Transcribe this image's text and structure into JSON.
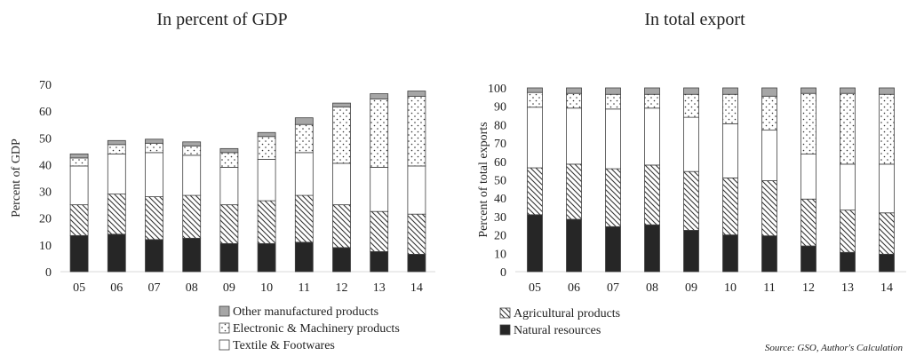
{
  "chart_data": [
    {
      "type": "bar",
      "stacked": true,
      "title": "In percent of GDP",
      "ylabel": "Percent of GDP",
      "xlabel": "",
      "ylim": [
        0,
        70
      ],
      "yticks": [
        0,
        10,
        20,
        30,
        40,
        50,
        60,
        70
      ],
      "grid": false,
      "categories": [
        "05",
        "06",
        "07",
        "08",
        "09",
        "10",
        "11",
        "12",
        "13",
        "14"
      ],
      "series": [
        {
          "name": "Natural resources",
          "pattern": "solid-dark",
          "values": [
            13.5,
            14,
            12,
            12.5,
            10.5,
            10.5,
            11,
            9,
            7.5,
            6.5
          ]
        },
        {
          "name": "Agricultural products",
          "pattern": "diagonal-hatch",
          "values": [
            11.5,
            15,
            16,
            16,
            14.5,
            16,
            17.5,
            16,
            15,
            15
          ]
        },
        {
          "name": "Textile & Footwares",
          "pattern": "white",
          "values": [
            14.5,
            15,
            16.5,
            15,
            14,
            15.5,
            16,
            15.5,
            16.5,
            18
          ]
        },
        {
          "name": "Electronic & Machinery products",
          "pattern": "dotted",
          "values": [
            3,
            3.5,
            3.5,
            3.5,
            5.5,
            8.5,
            10.5,
            21,
            25.5,
            26
          ]
        },
        {
          "name": "Other manufactured products",
          "pattern": "gray",
          "values": [
            1.5,
            1.5,
            1.5,
            1.5,
            1.5,
            1.5,
            2.5,
            1.5,
            2,
            2
          ]
        }
      ]
    },
    {
      "type": "bar",
      "stacked": true,
      "title": "In total export",
      "ylabel": "Percent of total exports",
      "xlabel": "",
      "ylim": [
        0,
        100
      ],
      "yticks": [
        0,
        10,
        20,
        30,
        40,
        50,
        60,
        70,
        80,
        90,
        100
      ],
      "grid": false,
      "categories": [
        "05",
        "06",
        "07",
        "08",
        "09",
        "10",
        "11",
        "12",
        "13",
        "14"
      ],
      "series": [
        {
          "name": "Natural resources",
          "pattern": "solid-dark",
          "values": [
            31,
            28.5,
            24.5,
            25.5,
            22.5,
            20,
            19.5,
            14,
            10.5,
            9.5
          ]
        },
        {
          "name": "Agricultural products",
          "pattern": "diagonal-hatch",
          "values": [
            25.5,
            30,
            31.5,
            32.5,
            32,
            31,
            30,
            25.5,
            23,
            22.5
          ]
        },
        {
          "name": "Textile & Footwares",
          "pattern": "white",
          "values": [
            33,
            30.5,
            32.5,
            31,
            29.5,
            29.5,
            27.5,
            24.5,
            25,
            26.5
          ]
        },
        {
          "name": "Electronic & Machinery products",
          "pattern": "dotted",
          "values": [
            8,
            8,
            8,
            7.5,
            12.5,
            16,
            18.5,
            33,
            38.5,
            38
          ]
        },
        {
          "name": "Other manufactured products",
          "pattern": "gray",
          "values": [
            2.5,
            3,
            3.5,
            3.5,
            3.5,
            3.5,
            4.5,
            3,
            3,
            3.5
          ]
        }
      ]
    }
  ],
  "legend_left": [
    {
      "label": "Other manufactured products",
      "pattern": "gray"
    },
    {
      "label": "Electronic & Machinery products",
      "pattern": "dotted"
    },
    {
      "label": "Textile & Footwares",
      "pattern": "white"
    }
  ],
  "legend_right": [
    {
      "label": "Agricultural products",
      "pattern": "diagonal-hatch"
    },
    {
      "label": "Natural resources",
      "pattern": "solid-dark"
    }
  ],
  "source": "Source: GSO, Author's Calculation",
  "colors": {
    "dark": "#262626",
    "gray": "#a6a6a6",
    "axis": "#d9d9d9",
    "outline": "#404040"
  }
}
